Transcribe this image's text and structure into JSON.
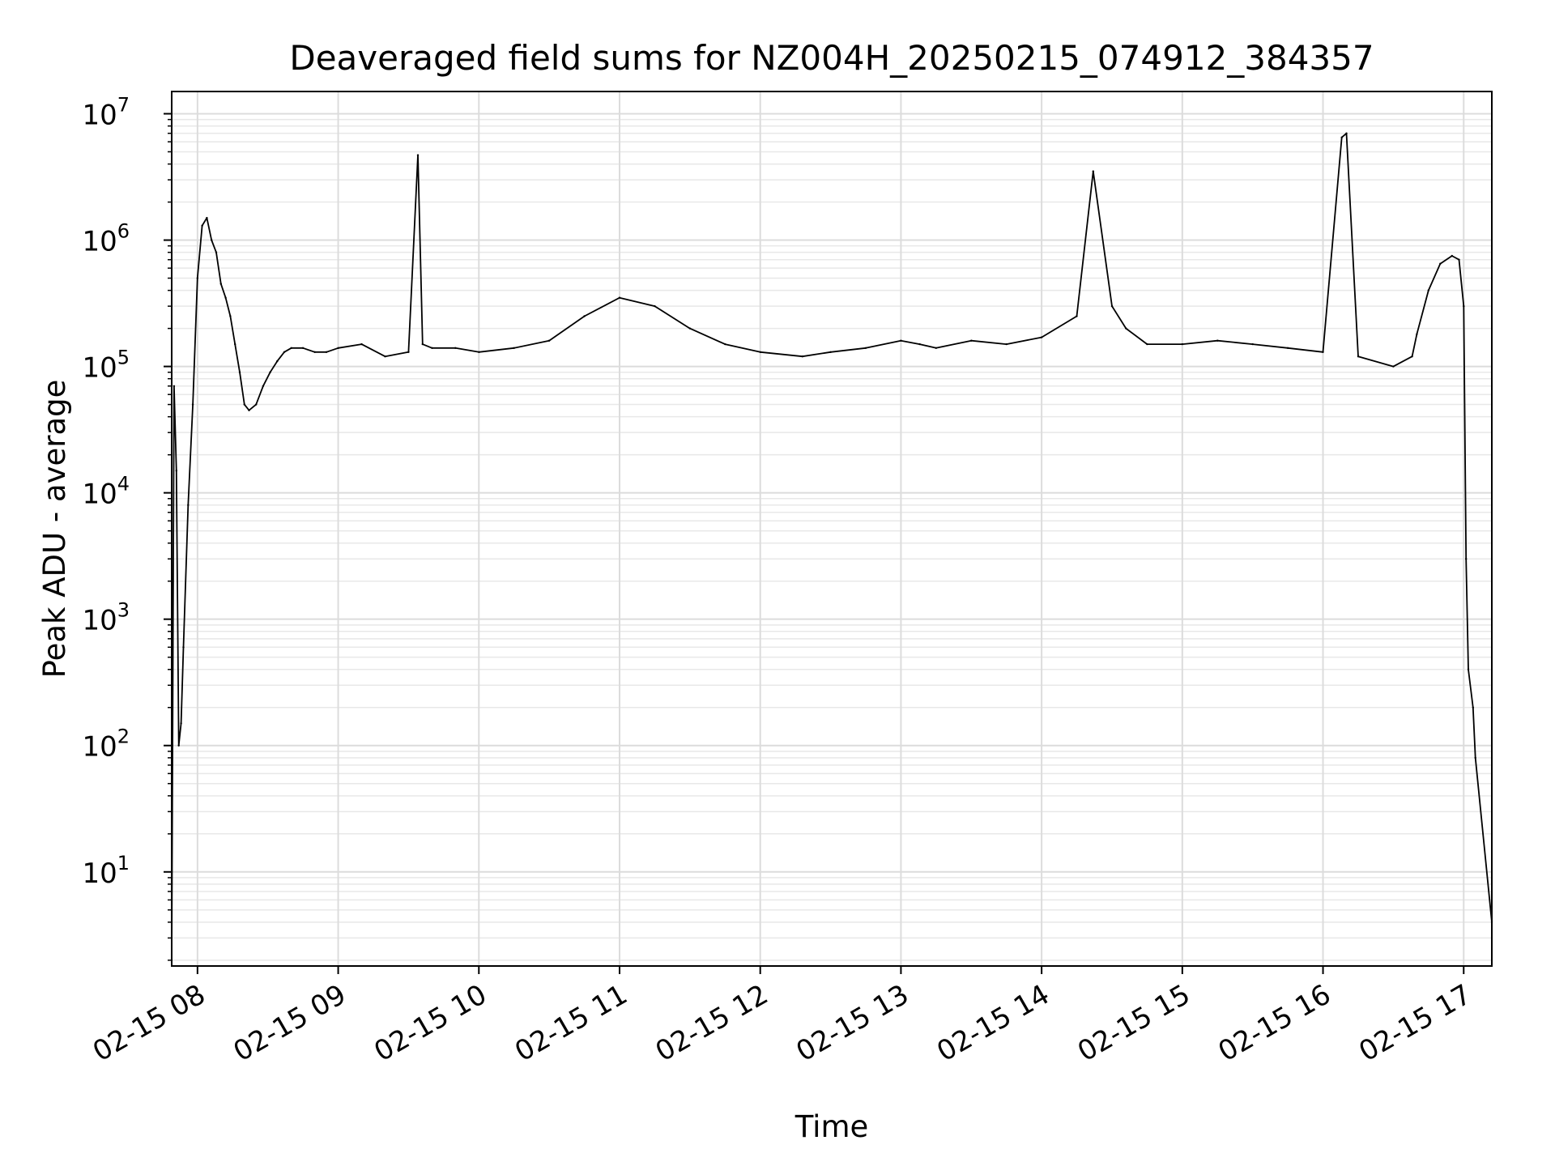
{
  "chart_data": {
    "type": "line",
    "title": "Deaveraged field sums for NZ004H_20250215_074912_384357",
    "xlabel": "Time",
    "ylabel": "Peak ADU - average",
    "yscale": "log",
    "ylim": [
      1.8,
      15000000
    ],
    "xlim": [
      "02-15 07:49",
      "02-15 17:12"
    ],
    "grid": true,
    "line_color": "#000000",
    "x_ticks": [
      "02-15 08",
      "02-15 09",
      "02-15 10",
      "02-15 11",
      "02-15 12",
      "02-15 13",
      "02-15 14",
      "02-15 15",
      "02-15 16",
      "02-15 17"
    ],
    "y_ticks": [
      {
        "base": "10",
        "exp": "1"
      },
      {
        "base": "10",
        "exp": "2"
      },
      {
        "base": "10",
        "exp": "3"
      },
      {
        "base": "10",
        "exp": "4"
      },
      {
        "base": "10",
        "exp": "5"
      },
      {
        "base": "10",
        "exp": "6"
      },
      {
        "base": "10",
        "exp": "7"
      }
    ],
    "series": [
      {
        "x": [
          "02-15 07:49",
          "02-15 07:50",
          "02-15 07:51",
          "02-15 07:52",
          "02-15 07:53",
          "02-15 07:54",
          "02-15 07:56",
          "02-15 07:58",
          "02-15 08:00",
          "02-15 08:02",
          "02-15 08:04",
          "02-15 08:06",
          "02-15 08:08",
          "02-15 08:10",
          "02-15 08:12",
          "02-15 08:14",
          "02-15 08:16",
          "02-15 08:18",
          "02-15 08:20",
          "02-15 08:22",
          "02-15 08:25",
          "02-15 08:28",
          "02-15 08:31",
          "02-15 08:34",
          "02-15 08:37",
          "02-15 08:40",
          "02-15 08:45",
          "02-15 08:50",
          "02-15 08:55",
          "02-15 09:00",
          "02-15 09:10",
          "02-15 09:20",
          "02-15 09:30",
          "02-15 09:34",
          "02-15 09:36",
          "02-15 09:40",
          "02-15 09:50",
          "02-15 10:00",
          "02-15 10:15",
          "02-15 10:30",
          "02-15 10:45",
          "02-15 11:00",
          "02-15 11:15",
          "02-15 11:30",
          "02-15 11:45",
          "02-15 12:00",
          "02-15 12:18",
          "02-15 12:30",
          "02-15 12:45",
          "02-15 13:00",
          "02-15 13:08",
          "02-15 13:15",
          "02-15 13:30",
          "02-15 13:45",
          "02-15 14:00",
          "02-15 14:15",
          "02-15 14:22",
          "02-15 14:30",
          "02-15 14:36",
          "02-15 14:45",
          "02-15 15:00",
          "02-15 15:15",
          "02-15 15:30",
          "02-15 15:45",
          "02-15 16:00",
          "02-15 16:08",
          "02-15 16:10",
          "02-15 16:15",
          "02-15 16:30",
          "02-15 16:38",
          "02-15 16:40",
          "02-15 16:45",
          "02-15 16:50",
          "02-15 16:55",
          "02-15 16:58",
          "02-15 17:00",
          "02-15 17:01",
          "02-15 17:02",
          "02-15 17:04",
          "02-15 17:05",
          "02-15 17:12"
        ],
        "y": [
          2,
          70000,
          15000,
          100,
          150,
          600,
          8000,
          50000,
          500000,
          1300000,
          1500000,
          1000000,
          800000,
          450000,
          350000,
          250000,
          150000,
          90000,
          50000,
          45000,
          50000,
          70000,
          90000,
          110000,
          130000,
          140000,
          140000,
          130000,
          130000,
          140000,
          150000,
          120000,
          130000,
          4700000,
          150000,
          140000,
          140000,
          130000,
          140000,
          160000,
          250000,
          350000,
          300000,
          200000,
          150000,
          130000,
          120000,
          130000,
          140000,
          160000,
          150000,
          140000,
          160000,
          150000,
          170000,
          250000,
          3500000,
          300000,
          200000,
          150000,
          150000,
          160000,
          150000,
          140000,
          130000,
          6500000,
          7000000,
          120000,
          100000,
          120000,
          180000,
          400000,
          650000,
          750000,
          700000,
          300000,
          3000,
          400,
          200,
          80,
          4
        ]
      }
    ]
  }
}
